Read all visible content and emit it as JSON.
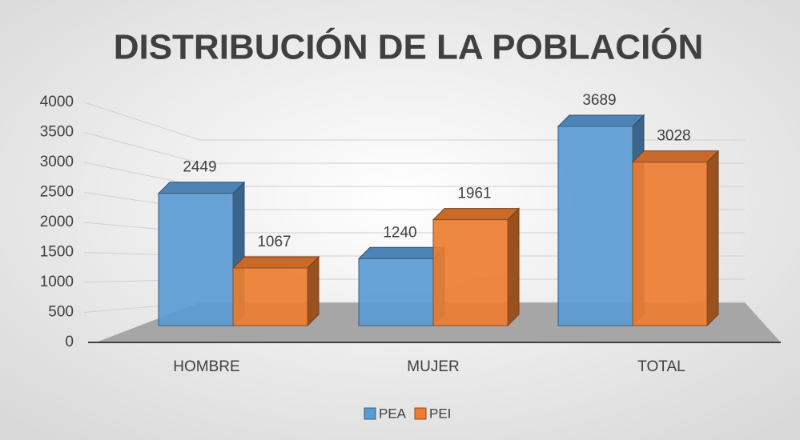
{
  "chart_data": {
    "type": "bar3d",
    "title": "DISTRIBUCIÓN DE LA POBLACIÓN",
    "categories": [
      "HOMBRE",
      "MUJER",
      "TOTAL"
    ],
    "series": [
      {
        "name": "PEA",
        "color": "#5b9bd5",
        "values": [
          2449,
          1240,
          3689
        ]
      },
      {
        "name": "PEI",
        "color": "#ed7d31",
        "values": [
          1067,
          1961,
          3028
        ]
      }
    ],
    "ylim": [
      0,
      4000
    ],
    "yticks": [
      0,
      500,
      1000,
      1500,
      2000,
      2500,
      3000,
      3500,
      4000
    ],
    "grid": true,
    "legend": "bottom"
  }
}
